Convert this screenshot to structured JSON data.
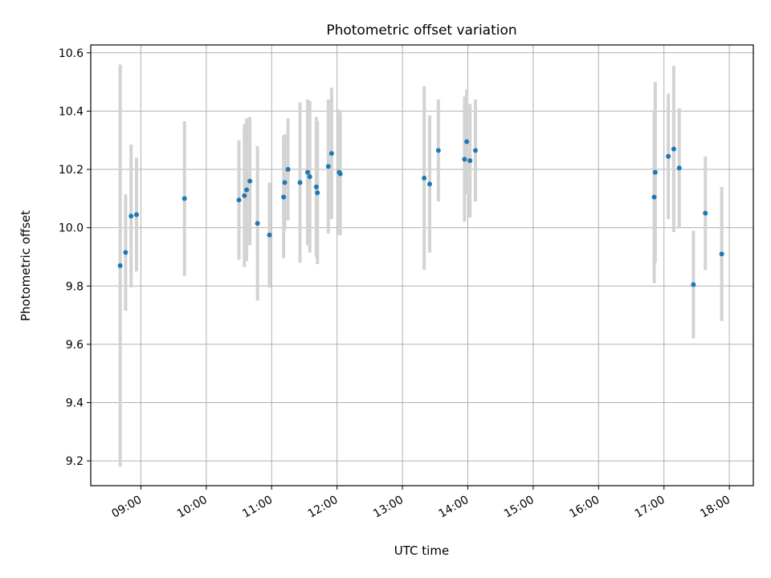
{
  "chart_data": {
    "type": "scatter",
    "title": "Photometric offset variation",
    "xlabel": "UTC time",
    "ylabel": "Photometric offset",
    "x_is_time": true,
    "xlim": [
      "08:14",
      "18:22"
    ],
    "ylim": [
      9.115,
      10.627
    ],
    "xticks": [
      "09:00",
      "10:00",
      "11:00",
      "12:00",
      "13:00",
      "14:00",
      "15:00",
      "16:00",
      "17:00",
      "18:00"
    ],
    "yticks": [
      "9.2",
      "9.4",
      "9.6",
      "9.8",
      "10.0",
      "10.2",
      "10.4",
      "10.6"
    ],
    "grid": true,
    "colors": {
      "point": "#1f77b4",
      "errorbar": "#d3d3d3",
      "grid": "#b0b0b0"
    },
    "points": [
      {
        "t": "08:41",
        "y": 9.87,
        "err": 0.69
      },
      {
        "t": "08:46",
        "y": 9.915,
        "err": 0.2
      },
      {
        "t": "08:51",
        "y": 10.04,
        "err": 0.245
      },
      {
        "t": "08:56",
        "y": 10.045,
        "err": 0.195
      },
      {
        "t": "09:40",
        "y": 10.1,
        "err": 0.265
      },
      {
        "t": "10:30",
        "y": 10.095,
        "err": 0.205
      },
      {
        "t": "10:35",
        "y": 10.11,
        "err": 0.245
      },
      {
        "t": "10:37",
        "y": 10.13,
        "err": 0.245
      },
      {
        "t": "10:40",
        "y": 10.16,
        "err": 0.22
      },
      {
        "t": "10:47",
        "y": 10.015,
        "err": 0.265
      },
      {
        "t": "10:58",
        "y": 9.975,
        "err": 0.18
      },
      {
        "t": "11:11",
        "y": 10.105,
        "err": 0.21
      },
      {
        "t": "11:12",
        "y": 10.155,
        "err": 0.165
      },
      {
        "t": "11:15",
        "y": 10.2,
        "err": 0.175
      },
      {
        "t": "11:26",
        "y": 10.155,
        "err": 0.275
      },
      {
        "t": "11:33",
        "y": 10.19,
        "err": 0.25
      },
      {
        "t": "11:35",
        "y": 10.175,
        "err": 0.26
      },
      {
        "t": "11:41",
        "y": 10.14,
        "err": 0.24
      },
      {
        "t": "11:42",
        "y": 10.12,
        "err": 0.245
      },
      {
        "t": "11:52",
        "y": 10.21,
        "err": 0.23
      },
      {
        "t": "11:55",
        "y": 10.255,
        "err": 0.225
      },
      {
        "t": "12:02",
        "y": 10.19,
        "err": 0.215
      },
      {
        "t": "12:03",
        "y": 10.185,
        "err": 0.21
      },
      {
        "t": "13:20",
        "y": 10.17,
        "err": 0.315
      },
      {
        "t": "13:25",
        "y": 10.15,
        "err": 0.235
      },
      {
        "t": "13:33",
        "y": 10.265,
        "err": 0.175
      },
      {
        "t": "13:57",
        "y": 10.235,
        "err": 0.215
      },
      {
        "t": "13:59",
        "y": 10.295,
        "err": 0.18
      },
      {
        "t": "14:02",
        "y": 10.23,
        "err": 0.195
      },
      {
        "t": "14:07",
        "y": 10.265,
        "err": 0.175
      },
      {
        "t": "16:51",
        "y": 10.105,
        "err": 0.295
      },
      {
        "t": "16:52",
        "y": 10.19,
        "err": 0.31
      },
      {
        "t": "17:04",
        "y": 10.245,
        "err": 0.215
      },
      {
        "t": "17:09",
        "y": 10.27,
        "err": 0.285
      },
      {
        "t": "17:14",
        "y": 10.205,
        "err": 0.205
      },
      {
        "t": "17:27",
        "y": 9.805,
        "err": 0.185
      },
      {
        "t": "17:38",
        "y": 10.05,
        "err": 0.195
      },
      {
        "t": "17:53",
        "y": 9.91,
        "err": 0.23
      }
    ]
  }
}
